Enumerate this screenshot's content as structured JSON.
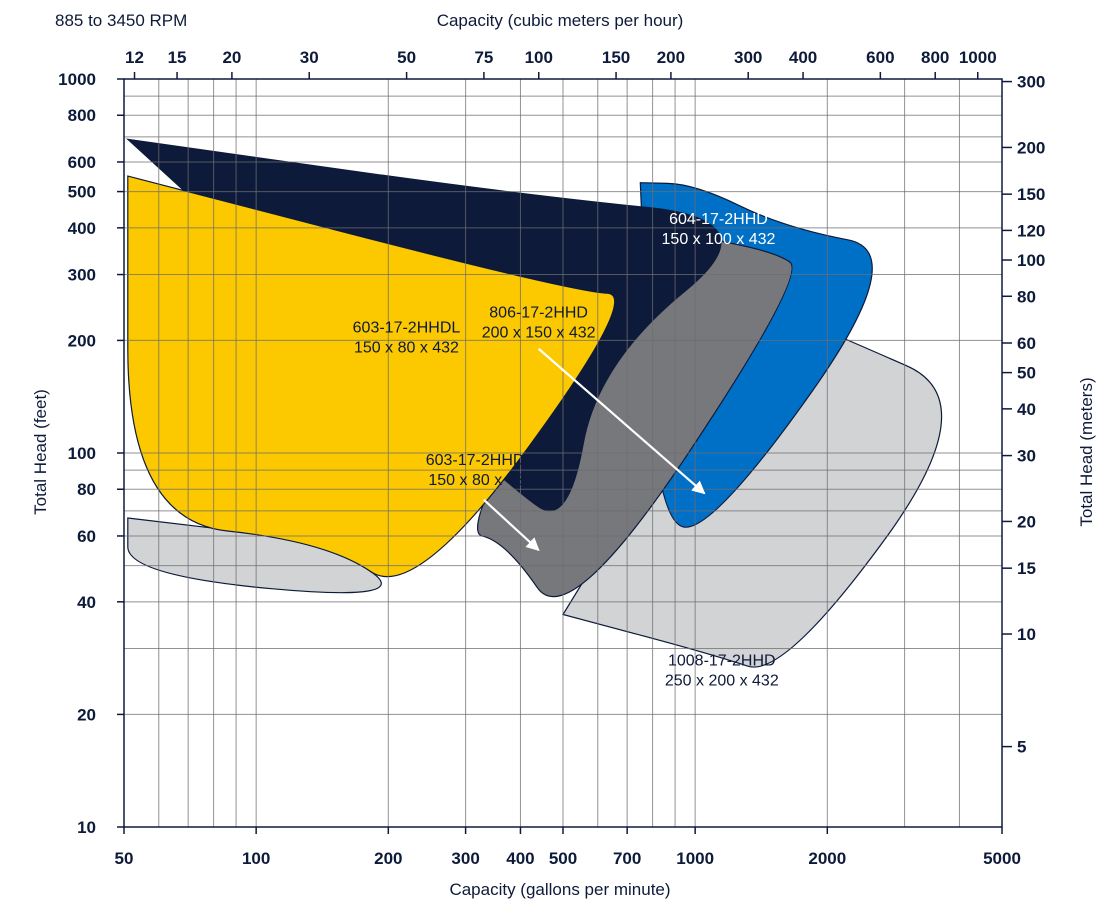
{
  "chart_data": {
    "type": "area",
    "title": "885 to 3450 RPM",
    "xlabel": "Capacity (gallons per minute)",
    "x2label": "Capacity (cubic meters per hour)",
    "ylabel": "Total Head (feet)",
    "y2label": "Total Head (meters)",
    "xscale": "log",
    "yscale": "log",
    "xlim": [
      50,
      5000
    ],
    "ylim": [
      10,
      1000
    ],
    "grid": true,
    "x_ticks": [
      "50",
      "100",
      "200",
      "300",
      "400",
      "500",
      "700",
      "1000",
      "2000",
      "5000"
    ],
    "x2_ticks": [
      "12",
      "15",
      "20",
      "30",
      "50",
      "75",
      "100",
      "150",
      "200",
      "300",
      "400",
      "600",
      "800",
      "1000"
    ],
    "y_ticks": [
      "10",
      "20",
      "40",
      "60",
      "80",
      "100",
      "200",
      "300",
      "400",
      "500",
      "600",
      "800",
      "1000"
    ],
    "y2_ticks": [
      "5",
      "10",
      "15",
      "20",
      "30",
      "40",
      "50",
      "60",
      "80",
      "100",
      "120",
      "150",
      "200",
      "300"
    ],
    "series": [
      {
        "name": "1008-17-2HHD",
        "label_line2": "250 x 200 x 432",
        "color": "#d2d3d5",
        "label_color": "#0d1a3a",
        "outline": [
          [
            500,
            37
          ],
          [
            1370,
            255
          ],
          [
            2000,
            212
          ],
          [
            4600,
            138
          ],
          [
            1590,
            25
          ],
          [
            1090,
            29
          ],
          [
            500,
            37
          ]
        ]
      },
      {
        "name": "603-17-2HHDH",
        "label_line2": "150 x 80 x 432",
        "color": "#d2d3d5",
        "label_color": "#0d1a3a",
        "outline": [
          [
            51,
            67
          ],
          [
            145,
            58
          ],
          [
            230,
            40
          ],
          [
            51,
            47
          ],
          [
            51,
            67
          ]
        ]
      },
      {
        "name": "604-17-2HHD",
        "label_line2": "150 x 100 x 432",
        "color": "#0070c6",
        "label_color": "#ffffff",
        "outline": [
          [
            750,
            528
          ],
          [
            1000,
            524
          ],
          [
            1600,
            400
          ],
          [
            3100,
            345
          ],
          [
            1090,
            61
          ],
          [
            810,
            66
          ],
          [
            750,
            528
          ]
        ]
      },
      {
        "name": "806-17-2HHD",
        "label_line2": "200 x 150 x 432",
        "color": "#77787b",
        "label_color": "#0d1a3a",
        "outline": [
          [
            740,
            400
          ],
          [
            1500,
            350
          ],
          [
            1800,
            300
          ],
          [
            515,
            33
          ],
          [
            370,
            58
          ],
          [
            290,
            62
          ],
          [
            740,
            400
          ]
        ]
      },
      {
        "name": "603-17-2HHDL",
        "label_line2": "150 x 80 x 432",
        "color": "#0d1a3a",
        "label_color": "#0d1a3a",
        "outline": [
          [
            51,
            690
          ],
          [
            400,
            490
          ],
          [
            1500,
            420
          ],
          [
            600,
            175
          ],
          [
            515,
            64
          ],
          [
            380,
            80
          ],
          [
            51,
            690
          ]
        ]
      },
      {
        "name": "yellow",
        "color": "#fcc800",
        "outline": [
          [
            51,
            550
          ],
          [
            530,
            270
          ],
          [
            750,
            265
          ],
          [
            230,
            40
          ],
          [
            145,
            58
          ],
          [
            51,
            66
          ],
          [
            51,
            550
          ]
        ]
      }
    ]
  }
}
